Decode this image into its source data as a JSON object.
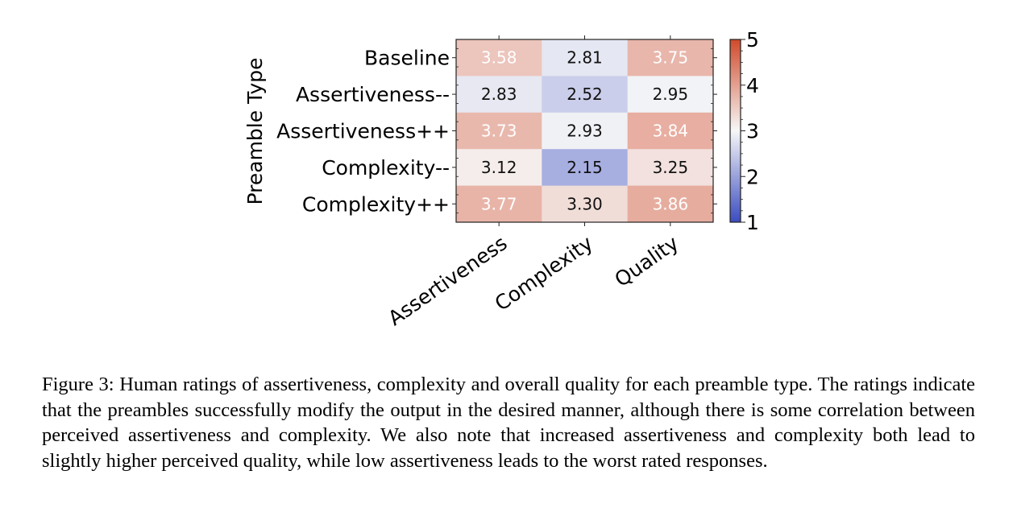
{
  "chart_data": {
    "type": "heatmap",
    "ylabel": "Preamble Type",
    "rows": [
      "Baseline",
      "Assertiveness--",
      "Assertiveness++",
      "Complexity--",
      "Complexity++"
    ],
    "columns": [
      "Assertiveness",
      "Complexity",
      "Quality"
    ],
    "values": [
      [
        3.58,
        2.81,
        3.75
      ],
      [
        2.83,
        2.52,
        2.95
      ],
      [
        3.73,
        2.93,
        3.84
      ],
      [
        3.12,
        2.15,
        3.25
      ],
      [
        3.77,
        3.3,
        3.86
      ]
    ],
    "value_labels": [
      [
        "3.58",
        "2.81",
        "3.75"
      ],
      [
        "2.83",
        "2.52",
        "2.95"
      ],
      [
        "3.73",
        "2.93",
        "3.84"
      ],
      [
        "3.12",
        "2.15",
        "3.25"
      ],
      [
        "3.77",
        "3.30",
        "3.86"
      ]
    ],
    "colorbar": {
      "min": 1,
      "max": 5,
      "center": 3,
      "ticks": [
        1,
        2,
        3,
        4,
        5
      ],
      "tick_labels": [
        "1",
        "2",
        "3",
        "4",
        "5"
      ],
      "colormap": "coolwarm",
      "low_color": "#3b4cc0",
      "mid_color": "#f7f7f7",
      "high_color": "#d04a2b"
    }
  },
  "caption": {
    "label": "Figure 3:",
    "text": "Human ratings of assertiveness, complexity and overall quality for each preamble type. The ratings indicate that the preambles successfully modify the output in the desired manner, although there is some correlation between perceived assertiveness and complexity. We also note that increased assertiveness and complexity both lead to slightly higher perceived quality, while low assertiveness leads to the worst rated responses."
  }
}
